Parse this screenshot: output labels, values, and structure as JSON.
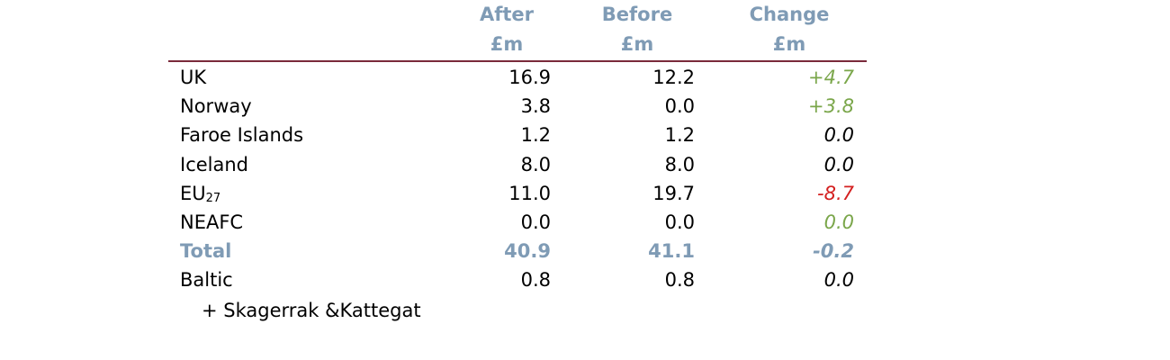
{
  "table": {
    "columns": [
      {
        "title": "After",
        "unit": "£m"
      },
      {
        "title": "Before",
        "unit": "£m"
      },
      {
        "title": "Change",
        "unit": "£m"
      }
    ],
    "rows": [
      {
        "label": "UK",
        "after": "16.9",
        "before": "12.2",
        "change": "+4.7",
        "change_color": "#7aa64a"
      },
      {
        "label": "Norway",
        "after": "3.8",
        "before": "0.0",
        "change": "+3.8",
        "change_color": "#7aa64a"
      },
      {
        "label": "Faroe Islands",
        "after": "1.2",
        "before": "1.2",
        "change": "0.0",
        "change_color": "#000000"
      },
      {
        "label": "Iceland",
        "after": "8.0",
        "before": "8.0",
        "change": "0.0",
        "change_color": "#000000"
      },
      {
        "label": "EU",
        "label_sub": "27",
        "after": "11.0",
        "before": "19.7",
        "change": "-8.7",
        "change_color": "#d42020"
      },
      {
        "label": "NEAFC",
        "after": "0.0",
        "before": "0.0",
        "change": "0.0",
        "change_color": "#7aa64a"
      },
      {
        "label": "Total",
        "after": "40.9",
        "before": "41.1",
        "change": "-0.2",
        "total": true
      },
      {
        "label": "Baltic",
        "label_line2": "+ Skagerrak &Kattegat",
        "after": "0.8",
        "before": "0.8",
        "change": "0.0",
        "change_color": "#000000"
      }
    ]
  }
}
